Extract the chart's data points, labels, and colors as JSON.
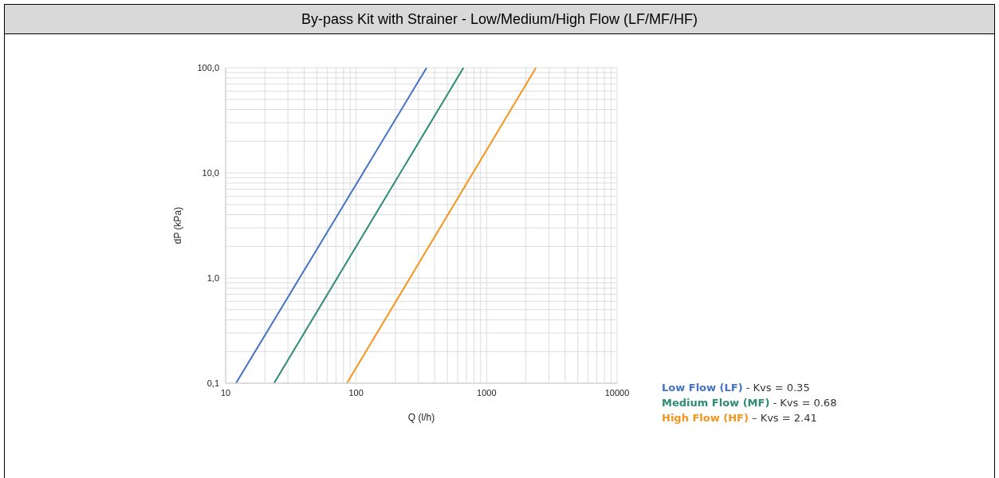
{
  "chart_data": {
    "type": "line",
    "title": "By-pass Kit with Strainer - Low/Medium/High Flow (LF/MF/HF)",
    "xlabel": "Q (l/h)",
    "ylabel": "dP (kPa)",
    "log": "xy",
    "grid": true,
    "legend": "right",
    "xlim": [
      10,
      10000
    ],
    "xticks": [
      10,
      {
        "value": 20,
        "label": null
      },
      {
        "value": 30,
        "label": null
      },
      {
        "value": 40,
        "label": null
      },
      {
        "value": 50,
        "label": null
      },
      {
        "value": 60,
        "label": null
      },
      {
        "value": 70,
        "label": null
      },
      {
        "value": 80,
        "label": null
      },
      {
        "value": 90,
        "label": null
      },
      100,
      {
        "value": 200,
        "label": null
      },
      {
        "value": 300,
        "label": null
      },
      {
        "value": 400,
        "label": null
      },
      {
        "value": 500,
        "label": null
      },
      {
        "value": 600,
        "label": null
      },
      {
        "value": 700,
        "label": null
      },
      {
        "value": 800,
        "label": null
      },
      {
        "value": 900,
        "label": null
      },
      1000,
      {
        "value": 2000,
        "label": null
      },
      {
        "value": 3000,
        "label": null
      },
      {
        "value": 4000,
        "label": null
      },
      {
        "value": 5000,
        "label": null
      },
      {
        "value": 6000,
        "label": null
      },
      {
        "value": 7000,
        "label": null
      },
      {
        "value": 8000,
        "label": null
      },
      {
        "value": 9000,
        "label": null
      },
      10000
    ],
    "ylim": [
      0.1,
      100
    ],
    "yticks": [
      {
        "value": 0.1,
        "label": "0,1"
      },
      {
        "value": 0.2,
        "label": null
      },
      {
        "value": 0.3,
        "label": null
      },
      {
        "value": 0.4,
        "label": null
      },
      {
        "value": 0.5,
        "label": null
      },
      {
        "value": 0.6,
        "label": null
      },
      {
        "value": 0.7,
        "label": null
      },
      {
        "value": 0.8,
        "label": null
      },
      {
        "value": 0.9,
        "label": null
      },
      {
        "value": 1,
        "label": "1,0"
      },
      {
        "value": 2,
        "label": null
      },
      {
        "value": 3,
        "label": null
      },
      {
        "value": 4,
        "label": null
      },
      {
        "value": 5,
        "label": null
      },
      {
        "value": 6,
        "label": null
      },
      {
        "value": 7,
        "label": null
      },
      {
        "value": 8,
        "label": null
      },
      {
        "value": 9,
        "label": null
      },
      {
        "value": 10,
        "label": "10,0"
      },
      {
        "value": 20,
        "label": null
      },
      {
        "value": 30,
        "label": null
      },
      {
        "value": 40,
        "label": null
      },
      {
        "value": 50,
        "label": null
      },
      {
        "value": 60,
        "label": null
      },
      {
        "value": 70,
        "label": null
      },
      {
        "value": 80,
        "label": null
      },
      {
        "value": 90,
        "label": null
      },
      {
        "value": 100,
        "label": "100,0"
      }
    ],
    "series": [
      {
        "name": "Low Flow (LF)",
        "color": "#4472c4",
        "x": [
          12,
          347
        ],
        "values": [
          0.1,
          100
        ]
      },
      {
        "name": "Medium Flow (MF)",
        "color": "#2e8b74",
        "x": [
          23.5,
          665
        ],
        "values": [
          0.1,
          100
        ]
      },
      {
        "name": "High Flow (HF)",
        "color": "#f7941d",
        "x": [
          85,
          2390
        ],
        "values": [
          0.1,
          100
        ]
      }
    ],
    "annotations": [
      " - Kvs = 0.35",
      " - Kvs = 0.68",
      " – Kvs = 2.41"
    ]
  }
}
